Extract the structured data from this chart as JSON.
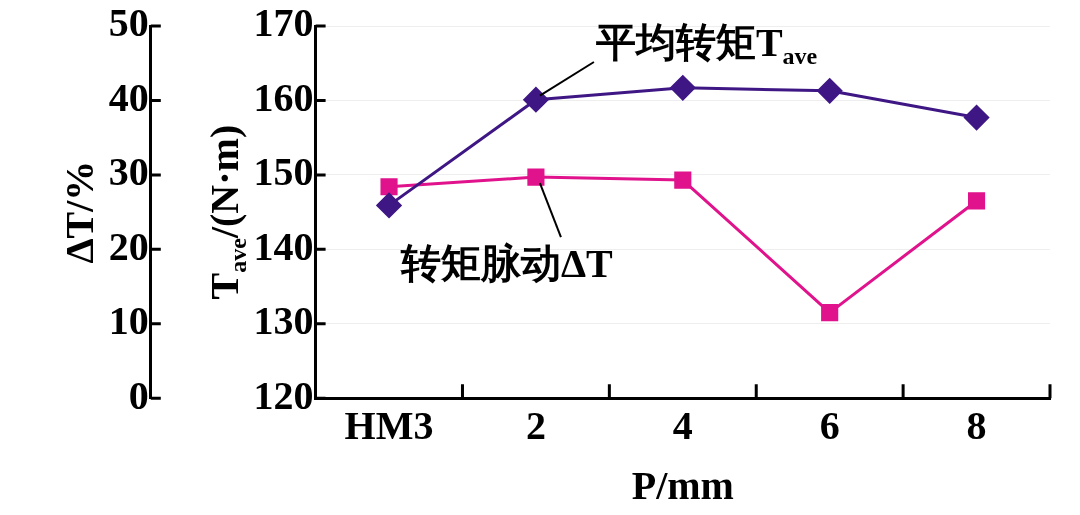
{
  "chart_data": {
    "type": "line",
    "categories": [
      "HM3",
      "2",
      "4",
      "6",
      "8"
    ],
    "xlabel": "P/mm",
    "ylabel": "T$_{ave}$/(N·m)",
    "y2label": "ΔT/%",
    "ylim": [
      120,
      170
    ],
    "yticks": [
      120,
      130,
      140,
      150,
      160,
      170
    ],
    "y2lim": [
      0,
      50
    ],
    "y2ticks": [
      0,
      10,
      20,
      30,
      40,
      50
    ],
    "grid": "y",
    "legend": false,
    "series": [
      {
        "name": "平均转矩T$_{ave}$",
        "color": "#3f1785",
        "marker": "diamond",
        "values": [
          145.9,
          160.1,
          161.7,
          161.3,
          157.7
        ]
      },
      {
        "name": "转矩脉动ΔT",
        "color": "#e0138c",
        "marker": "square",
        "axis": "y2",
        "values": [
          28.4,
          29.7,
          29.3,
          11.5,
          26.5
        ]
      }
    ]
  }
}
